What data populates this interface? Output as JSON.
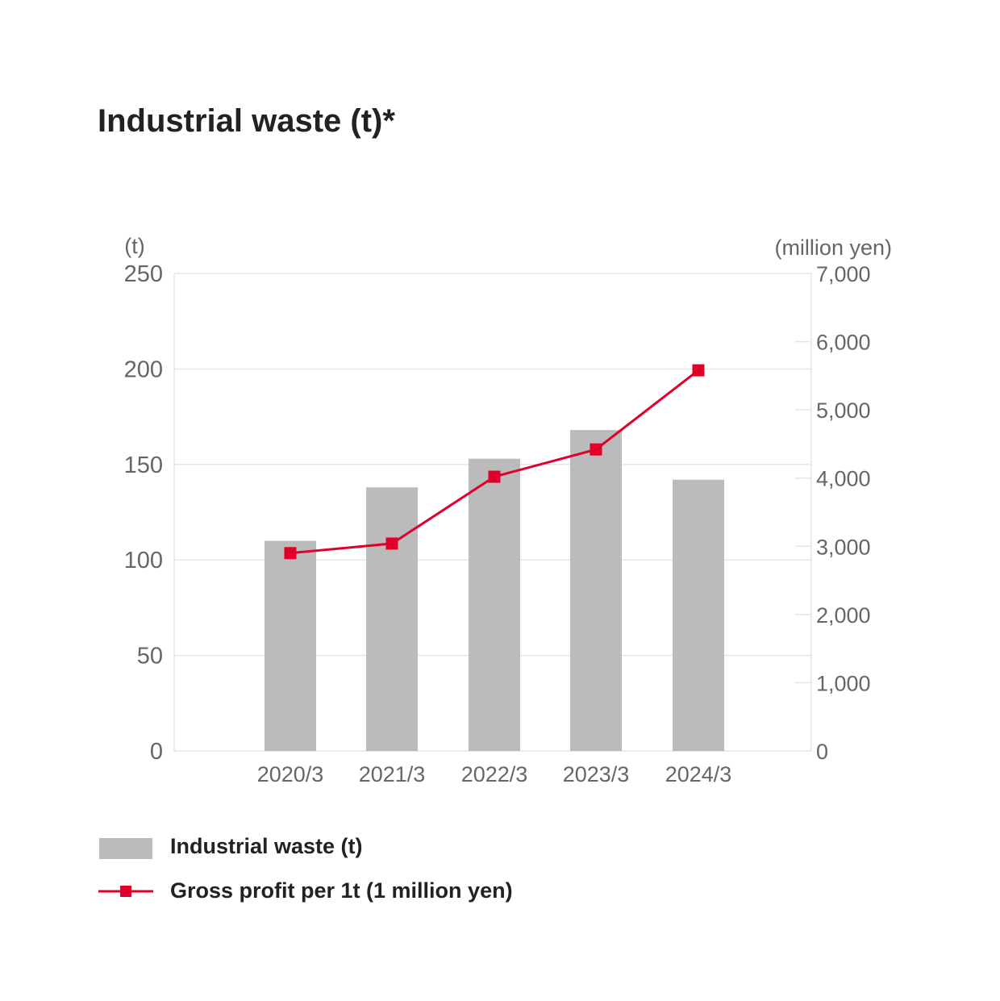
{
  "title": "Industrial waste (t)*",
  "colors": {
    "bar": "#bbbbbb",
    "line": "#e0002a",
    "grid": "#e6e6e6",
    "axis_text": "#666666",
    "title_text": "#222222"
  },
  "chart_data": {
    "type": "bar",
    "title": "Industrial waste (t)*",
    "categories": [
      "2020/3",
      "2021/3",
      "2022/3",
      "2023/3",
      "2024/3"
    ],
    "y_left": {
      "unit_label": "(t)",
      "range": [
        0,
        250
      ],
      "ticks": [
        "0",
        "50",
        "100",
        "150",
        "200",
        "250"
      ]
    },
    "y_right": {
      "unit_label": "(million yen)",
      "range": [
        0,
        7000
      ],
      "ticks": [
        "0",
        "1,000",
        "2,000",
        "3,000",
        "4,000",
        "5,000",
        "6,000",
        "7,000"
      ]
    },
    "series": [
      {
        "name": "Industrial waste (t)",
        "kind": "bar",
        "axis": "left",
        "values": [
          110,
          138,
          153,
          168,
          142
        ]
      },
      {
        "name": "Gross profit per 1t (1 million yen)",
        "kind": "line",
        "marker": "square",
        "axis": "right",
        "values": [
          2900,
          3040,
          4020,
          4420,
          5580
        ]
      }
    ],
    "grid": true,
    "legend_position": "bottom-left"
  },
  "legend": {
    "items": [
      {
        "label": "Industrial waste (t)",
        "icon": "gray-bar-swatch-icon"
      },
      {
        "label": "Gross profit per 1t (1 million yen)",
        "icon": "red-line-square-marker-icon"
      }
    ]
  }
}
